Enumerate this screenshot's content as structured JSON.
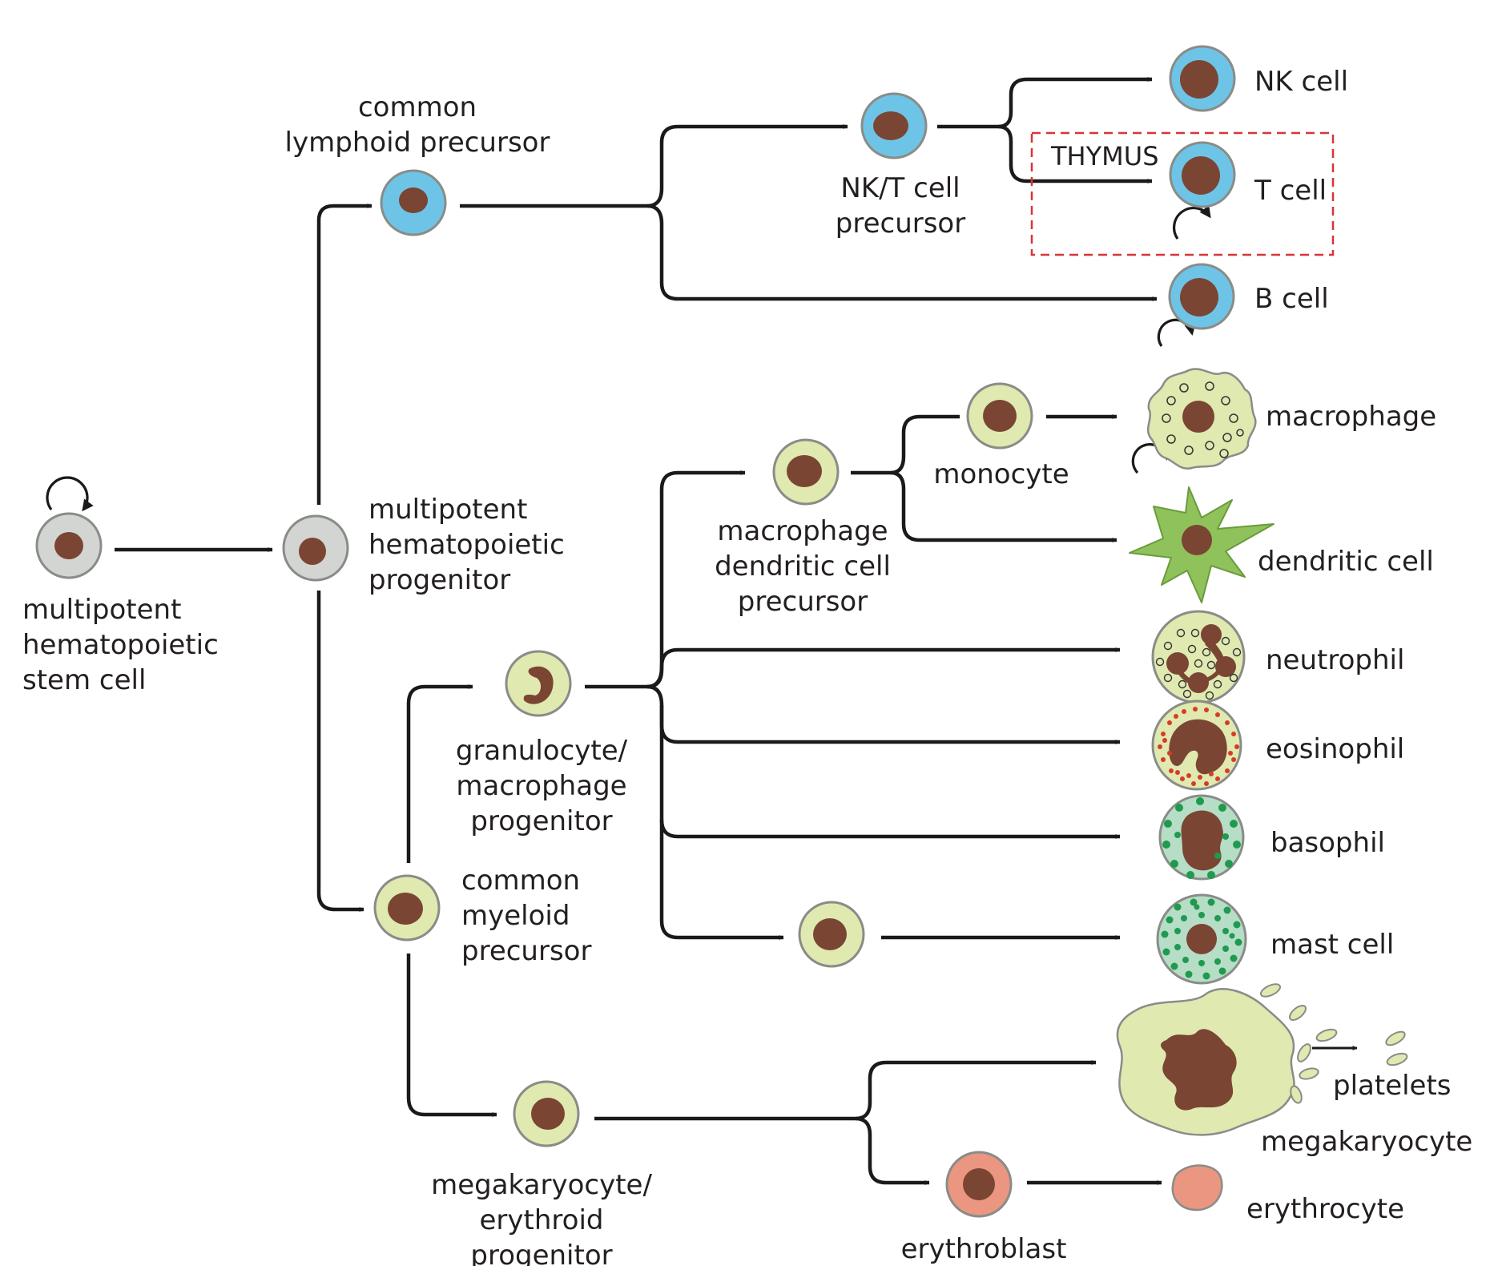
{
  "colors": {
    "stem": "#d3d5d2",
    "lymphoid": "#6ec4e6",
    "myeloid": "#dfe9b0",
    "erythroid": "#ea9680",
    "dendritic": "#8fc25a",
    "basophil_bg": "#b6ddc6",
    "granule_green": "#1f9a4f",
    "granule_red": "#d83a2a",
    "nucleus": "#7a4533",
    "outline": "#8a8c88",
    "arrow": "#1a1a1a",
    "thymus_box": "#d8343a"
  },
  "labels": {
    "stem_cell": [
      "multipotent",
      "hematopoietic",
      "stem cell"
    ],
    "mpp": [
      "multipotent",
      "hematopoietic",
      "progenitor"
    ],
    "clp": [
      "common",
      "lymphoid precursor"
    ],
    "nkt_precursor": [
      "NK/T cell",
      "precursor"
    ],
    "nk_cell": "NK cell",
    "thymus": "THYMUS",
    "t_cell": "T cell",
    "b_cell": "B cell",
    "cmp": [
      "common",
      "myeloid",
      "precursor"
    ],
    "gmp": [
      "granulocyte/",
      "macrophage",
      "progenitor"
    ],
    "mdp": [
      "macrophage",
      "dendritic cell",
      "precursor"
    ],
    "monocyte": "monocyte",
    "macrophage": "macrophage",
    "dendritic_cell": "dendritic cell",
    "neutrophil": "neutrophil",
    "eosinophil": "eosinophil",
    "basophil": "basophil",
    "mast_cell": "mast cell",
    "mep": [
      "megakaryocyte/",
      "erythroid",
      "progenitor"
    ],
    "erythroblast": "erythroblast",
    "erythrocyte": "erythrocyte",
    "megakaryocyte": "megakaryocyte",
    "platelets": "platelets"
  }
}
